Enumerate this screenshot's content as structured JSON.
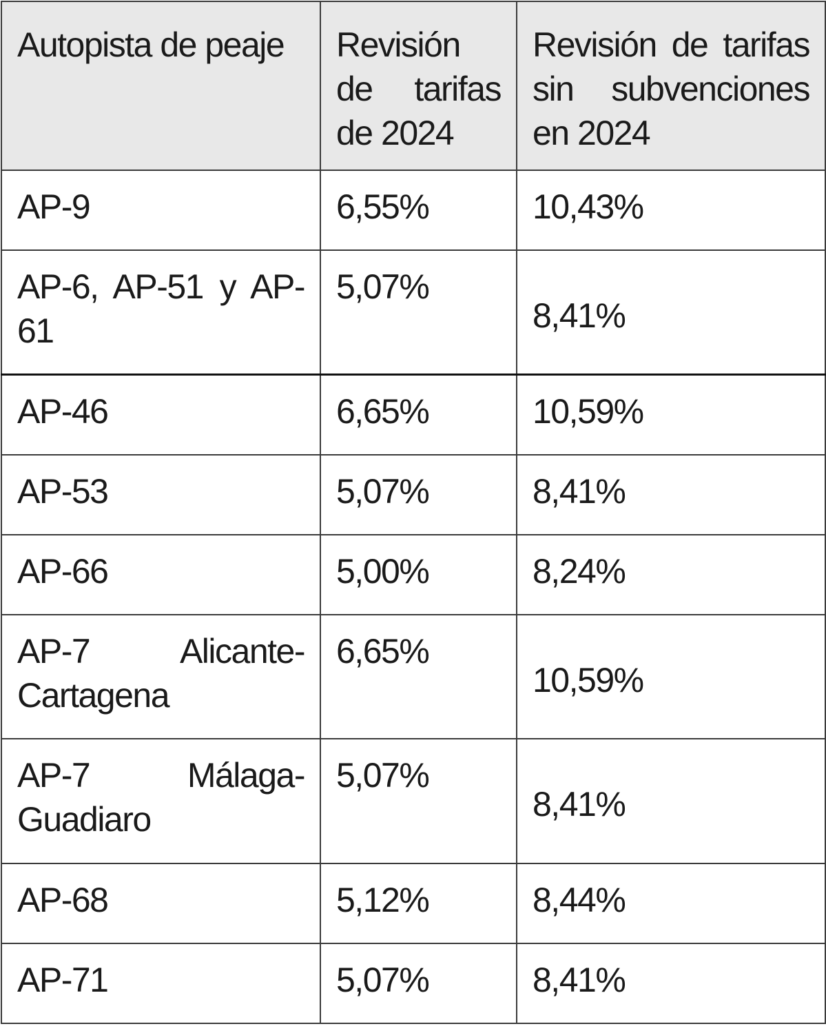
{
  "table": {
    "headers": [
      "Autopista de peaje",
      "Revisión de tarifas de 2024",
      "Revisión de tarifas sin subvenciones en 2024"
    ],
    "rows": [
      {
        "road": "AP-9",
        "rev": "6,55%",
        "rev_nosub": "10,43%"
      },
      {
        "road": "AP-6, AP-51 y AP-61",
        "rev": "5,07%",
        "rev_nosub": "8,41%"
      },
      {
        "road": "AP-46",
        "rev": "6,65%",
        "rev_nosub": "10,59%"
      },
      {
        "road": "AP-53",
        "rev": "5,07%",
        "rev_nosub": "8,41%"
      },
      {
        "road": "AP-66",
        "rev": "5,00%",
        "rev_nosub": "8,24%"
      },
      {
        "road": "AP-7 Alicante-Cartagena",
        "rev": "6,65%",
        "rev_nosub": "10,59%"
      },
      {
        "road": "AP-7 Málaga-Guadiaro",
        "rev": "5,07%",
        "rev_nosub": "8,41%"
      },
      {
        "road": "AP-68",
        "rev": "5,12%",
        "rev_nosub": "8,44%"
      },
      {
        "road": "AP-71",
        "rev": "5,07%",
        "rev_nosub": "8,41%"
      }
    ]
  }
}
